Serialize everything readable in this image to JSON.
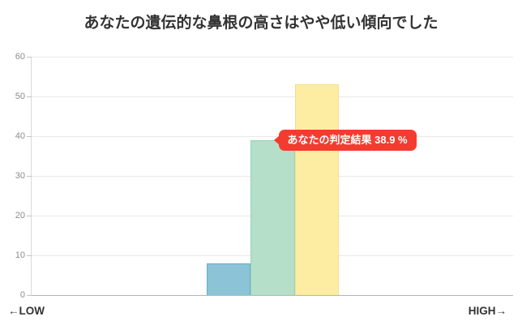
{
  "page": {
    "title": "あなたの遺伝的な鼻根の高さはやや低い傾向でした"
  },
  "x_axis": {
    "low_label": "←LOW",
    "high_label": "HIGH→"
  },
  "tooltip": {
    "label": "あなたの判定結果",
    "value": "38.9 %",
    "bg_color": "#f43b30",
    "text_color": "#ffffff"
  },
  "colors": {
    "title_text": "#333333",
    "tick_text": "#8c8c8c",
    "grid": "#e9e9e9",
    "zero_line": "#b3b3b3",
    "axis_line": "#d9d9d9"
  },
  "chart_data": {
    "type": "bar",
    "title": "あなたの遺伝的な鼻根の高さはやや低い傾向でした",
    "xlabel": "←LOW … HIGH→",
    "ylabel": "",
    "categories": [
      "",
      "",
      "",
      "",
      "",
      "",
      "",
      "",
      "",
      "",
      ""
    ],
    "values": [
      null,
      null,
      null,
      null,
      8,
      38.9,
      53,
      null,
      null,
      null,
      null
    ],
    "bars": [
      {
        "index": 4,
        "value": 8,
        "fill": "#8cc3d7",
        "border": "#66aecb",
        "name": "bucket-low"
      },
      {
        "index": 5,
        "value": 38.9,
        "fill": "#b5dfc9",
        "border": "#99d3b5",
        "name": "bucket-user-result"
      },
      {
        "index": 6,
        "value": 53,
        "fill": "#fdeda3",
        "border": "#f2e08e",
        "name": "bucket-high"
      }
    ],
    "ylim": [
      0,
      60
    ],
    "yticks": [
      0,
      10,
      20,
      30,
      40,
      50,
      60
    ],
    "grid": "horizontal",
    "legend": "none",
    "annotation": {
      "text": "あなたの判定結果 38.9 %",
      "anchor_index": 5,
      "anchor_value": 38.9
    }
  }
}
